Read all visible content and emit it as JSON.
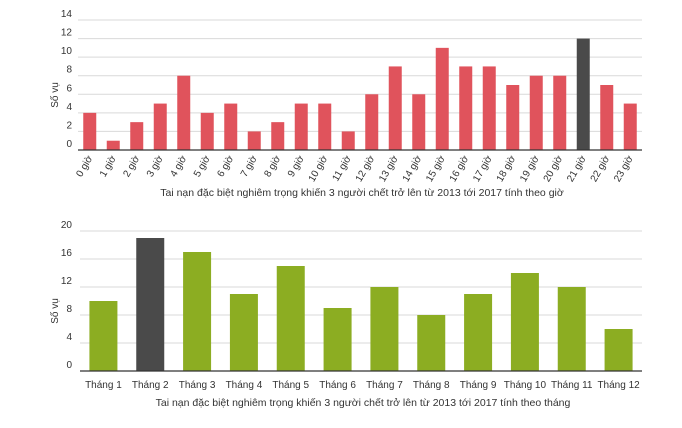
{
  "chart_data": [
    {
      "type": "bar",
      "title": "Tai nạn đặc biệt nghiêm trọng khiến 3 người chết trở lên từ 2013 tới 2017 tính theo giờ",
      "ylabel": "Số vụ",
      "xlabel": "",
      "ylim": [
        0,
        14
      ],
      "yticks": [
        0,
        2,
        4,
        6,
        8,
        10,
        12,
        14
      ],
      "grid": true,
      "bar_color": "#e0535c",
      "highlight_color": "#4a4a4a",
      "highlight_index": 21,
      "categories": [
        "0 giờ",
        "1 giờ",
        "2 giờ",
        "3 giờ",
        "4 giờ",
        "5 giờ",
        "6 giờ",
        "7 giờ",
        "8 giờ",
        "9 giờ",
        "10 giờ",
        "11 giờ",
        "12 giờ",
        "13 giờ",
        "14 giờ",
        "15 giờ",
        "16 giờ",
        "17 giờ",
        "18 giờ",
        "19 giờ",
        "20 giờ",
        "21 giờ",
        "22 giờ",
        "23 giờ"
      ],
      "values": [
        4,
        1,
        3,
        5,
        8,
        4,
        5,
        2,
        3,
        5,
        5,
        2,
        6,
        9,
        6,
        11,
        9,
        9,
        7,
        8,
        8,
        12,
        7,
        5
      ]
    },
    {
      "type": "bar",
      "title": "Tai nạn đặc biệt nghiêm trọng khiến 3 người chết trở lên từ 2013 tới 2017 tính theo tháng",
      "ylabel": "Số vụ",
      "xlabel": "",
      "ylim": [
        0,
        20
      ],
      "yticks": [
        0,
        4,
        8,
        12,
        16,
        20
      ],
      "grid": true,
      "bar_color": "#8cad22",
      "highlight_color": "#4a4a4a",
      "highlight_index": 1,
      "categories": [
        "Tháng 1",
        "Tháng 2",
        "Tháng 3",
        "Tháng 4",
        "Tháng 5",
        "Tháng 6",
        "Tháng 7",
        "Tháng 8",
        "Tháng 9",
        "Tháng 10",
        "Tháng 11",
        "Tháng 12"
      ],
      "values": [
        10,
        19,
        17,
        11,
        15,
        9,
        12,
        8,
        11,
        14,
        12,
        6
      ]
    }
  ]
}
